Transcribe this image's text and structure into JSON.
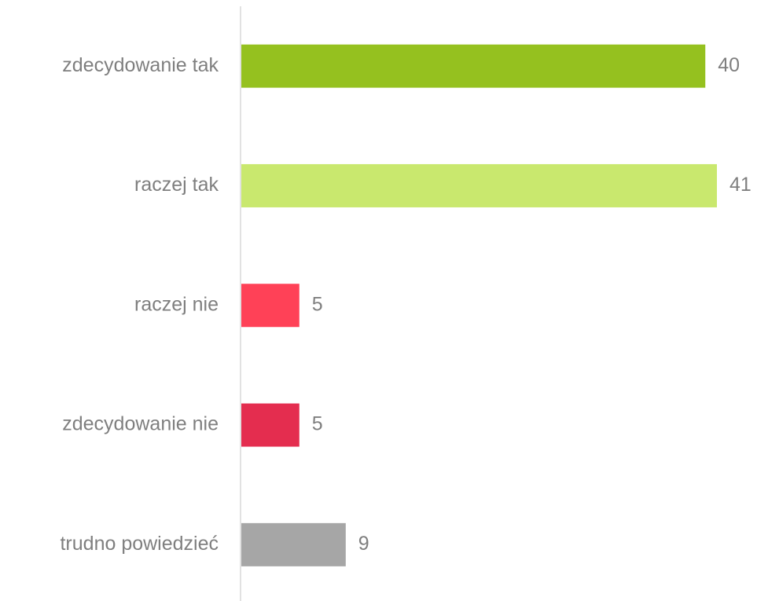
{
  "chart_data": {
    "type": "bar",
    "orientation": "horizontal",
    "categories": [
      "zdecydowanie tak",
      "raczej tak",
      "raczej nie",
      "zdecydowanie nie",
      "trudno powiedzieć"
    ],
    "values": [
      40,
      41,
      5,
      5,
      9
    ],
    "colors": [
      "#95c11f",
      "#c9e86e",
      "#ff4157",
      "#e42d4f",
      "#a6a6a6"
    ]
  }
}
